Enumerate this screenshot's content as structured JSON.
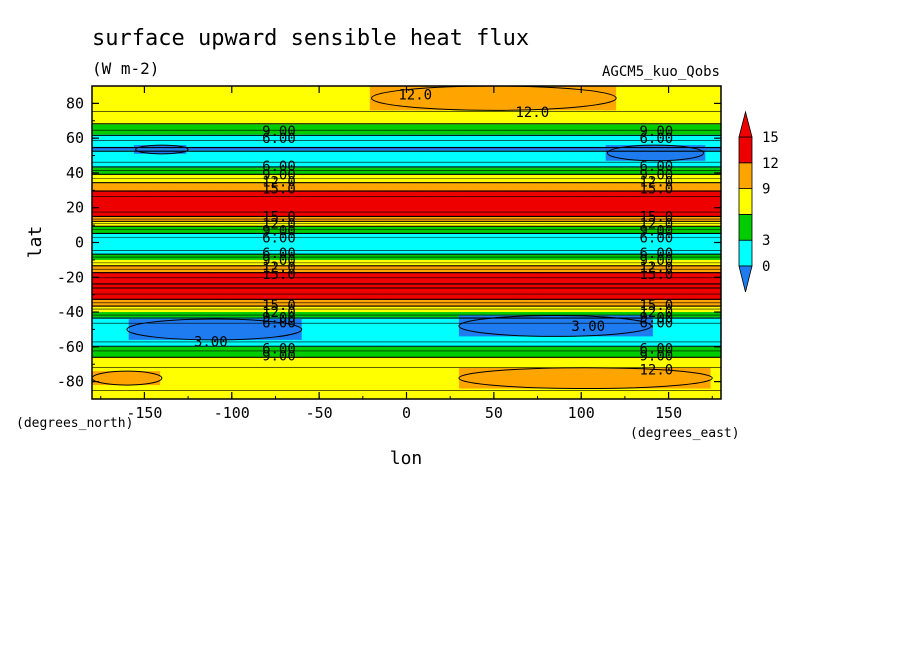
{
  "chart_data": {
    "type": "heatmap",
    "title": "surface upward sensible heat flux",
    "units": "(W m-2)",
    "dataset": "AGCM5_kuo_Qobs",
    "xlabel": "lon",
    "ylabel": "lat",
    "x_unit_label": "(degrees_east)",
    "y_unit_label": "(degrees_north)",
    "xlim": [
      -180,
      180
    ],
    "ylim": [
      -90,
      90
    ],
    "x_ticks": [
      -150,
      -100,
      -50,
      0,
      50,
      100,
      150
    ],
    "x_tick_labels": [
      "-150",
      "-100",
      "-50",
      "0",
      "50",
      "100",
      "150"
    ],
    "y_ticks": [
      80,
      60,
      40,
      20,
      0,
      -20,
      -40,
      -60,
      -80
    ],
    "y_tick_labels": [
      "80",
      "60",
      "40",
      "20",
      "0",
      "-20",
      "-40",
      "-60",
      "-80"
    ],
    "colorbar": {
      "levels": [
        0,
        3,
        6,
        9,
        12,
        15
      ],
      "labels": [
        "0",
        "3",
        "9",
        "12",
        "15"
      ],
      "label_values": [
        0,
        3,
        9,
        12,
        15
      ],
      "colors": [
        "#1e7cf0",
        "#00ffff",
        "#00cc00",
        "#ffff00",
        "#ffa500",
        "#ee0000"
      ],
      "extend": "both"
    },
    "zonal_profile": [
      {
        "lat": 90,
        "value": 10.5
      },
      {
        "lat": 82,
        "value": 10.8
      },
      {
        "lat": 76,
        "value": 10.6
      },
      {
        "lat": 70,
        "value": 9.6
      },
      {
        "lat": 66,
        "value": 8.2
      },
      {
        "lat": 62,
        "value": 6.2
      },
      {
        "lat": 58,
        "value": 4.2
      },
      {
        "lat": 54,
        "value": 2.8
      },
      {
        "lat": 48,
        "value": 3.6
      },
      {
        "lat": 44,
        "value": 5.6
      },
      {
        "lat": 40,
        "value": 8.5
      },
      {
        "lat": 36,
        "value": 11.0
      },
      {
        "lat": 32,
        "value": 13.5
      },
      {
        "lat": 28,
        "value": 16.0
      },
      {
        "lat": 22,
        "value": 18.0
      },
      {
        "lat": 16,
        "value": 16.0
      },
      {
        "lat": 13,
        "value": 13.0
      },
      {
        "lat": 10,
        "value": 9.5
      },
      {
        "lat": 6,
        "value": 6.5
      },
      {
        "lat": 2,
        "value": 4.0
      },
      {
        "lat": -1,
        "value": 3.2
      },
      {
        "lat": -4,
        "value": 4.0
      },
      {
        "lat": -7,
        "value": 6.2
      },
      {
        "lat": -10,
        "value": 9.0
      },
      {
        "lat": -14,
        "value": 12.5
      },
      {
        "lat": -18,
        "value": 15.5
      },
      {
        "lat": -25,
        "value": 18.5
      },
      {
        "lat": -32,
        "value": 15.5
      },
      {
        "lat": -36,
        "value": 12.5
      },
      {
        "lat": -40,
        "value": 9.0
      },
      {
        "lat": -44,
        "value": 5.5
      },
      {
        "lat": -50,
        "value": 3.0
      },
      {
        "lat": -56,
        "value": 3.8
      },
      {
        "lat": -60,
        "value": 6.2
      },
      {
        "lat": -64,
        "value": 8.4
      },
      {
        "lat": -70,
        "value": 10.2
      },
      {
        "lat": -78,
        "value": 11.4
      },
      {
        "lat": -84,
        "value": 10.6
      },
      {
        "lat": -90,
        "value": 10.0
      }
    ],
    "regional_features": [
      {
        "lon_range": [
          -20,
          120
        ],
        "lat_range": [
          76,
          90
        ],
        "value": 12.5
      },
      {
        "lon_range": [
          30,
          175
        ],
        "lat_range": [
          -84,
          -72
        ],
        "value": 12.5
      },
      {
        "lon_range": [
          -180,
          -140
        ],
        "lat_range": [
          -82,
          -74
        ],
        "value": 12.5
      },
      {
        "lon_range": [
          -155,
          -125
        ],
        "lat_range": [
          51,
          56
        ],
        "value": 1.5
      },
      {
        "lon_range": [
          115,
          170
        ],
        "lat_range": [
          47,
          56
        ],
        "value": 1.5
      },
      {
        "lon_range": [
          -160,
          -60
        ],
        "lat_range": [
          -56,
          -44
        ],
        "value": 1.5
      },
      {
        "lon_range": [
          30,
          140
        ],
        "lat_range": [
          -54,
          -42
        ],
        "value": 1.5
      }
    ],
    "contour_labels": [
      {
        "text": "12.0",
        "lon": 5,
        "lat": 85
      },
      {
        "text": "12.0",
        "lon": 72,
        "lat": 75
      },
      {
        "text": "9.00",
        "lon": -73,
        "lat": 64
      },
      {
        "text": "6.00",
        "lon": -73,
        "lat": 60
      },
      {
        "text": "9.00",
        "lon": 143,
        "lat": 64
      },
      {
        "text": "6.00",
        "lon": 143,
        "lat": 60
      },
      {
        "text": "6.00",
        "lon": -73,
        "lat": 44
      },
      {
        "text": "9.00",
        "lon": -73,
        "lat": 39
      },
      {
        "text": "12.0",
        "lon": -73,
        "lat": 35
      },
      {
        "text": "15.0",
        "lon": -73,
        "lat": 31
      },
      {
        "text": "6.00",
        "lon": 143,
        "lat": 44
      },
      {
        "text": "9.00",
        "lon": 143,
        "lat": 39
      },
      {
        "text": "12.0",
        "lon": 143,
        "lat": 35
      },
      {
        "text": "15.0",
        "lon": 143,
        "lat": 31
      },
      {
        "text": "15.0",
        "lon": -73,
        "lat": 15
      },
      {
        "text": "12.0",
        "lon": -73,
        "lat": 11
      },
      {
        "text": "9.00",
        "lon": -73,
        "lat": 7
      },
      {
        "text": "6.00",
        "lon": -73,
        "lat": 3
      },
      {
        "text": "15.0",
        "lon": 143,
        "lat": 15
      },
      {
        "text": "12.0",
        "lon": 143,
        "lat": 11
      },
      {
        "text": "9.00",
        "lon": 143,
        "lat": 7
      },
      {
        "text": "6.00",
        "lon": 143,
        "lat": 3
      },
      {
        "text": "6.00",
        "lon": -73,
        "lat": -6
      },
      {
        "text": "9.00",
        "lon": -73,
        "lat": -10
      },
      {
        "text": "12.0",
        "lon": -73,
        "lat": -14
      },
      {
        "text": "15.0",
        "lon": -73,
        "lat": -18
      },
      {
        "text": "6.00",
        "lon": 143,
        "lat": -6
      },
      {
        "text": "9.00",
        "lon": 143,
        "lat": -10
      },
      {
        "text": "12.0",
        "lon": 143,
        "lat": -14
      },
      {
        "text": "15.0",
        "lon": 143,
        "lat": -18
      },
      {
        "text": "15.0",
        "lon": -73,
        "lat": -36
      },
      {
        "text": "12.0",
        "lon": -73,
        "lat": -40
      },
      {
        "text": "9.00",
        "lon": -73,
        "lat": -43
      },
      {
        "text": "6.00",
        "lon": -73,
        "lat": -46
      },
      {
        "text": "15.0",
        "lon": 143,
        "lat": -36
      },
      {
        "text": "12.0",
        "lon": 143,
        "lat": -40
      },
      {
        "text": "9.00",
        "lon": 143,
        "lat": -43
      },
      {
        "text": "6.00",
        "lon": 143,
        "lat": -46
      },
      {
        "text": "3.00",
        "lon": -112,
        "lat": -57
      },
      {
        "text": "3.00",
        "lon": 104,
        "lat": -48
      },
      {
        "text": "6.00",
        "lon": -73,
        "lat": -61
      },
      {
        "text": "9.00",
        "lon": -73,
        "lat": -65
      },
      {
        "text": "6.00",
        "lon": 143,
        "lat": -61
      },
      {
        "text": "9.00",
        "lon": 143,
        "lat": -65
      },
      {
        "text": "12.0",
        "lon": 143,
        "lat": -73
      }
    ]
  }
}
